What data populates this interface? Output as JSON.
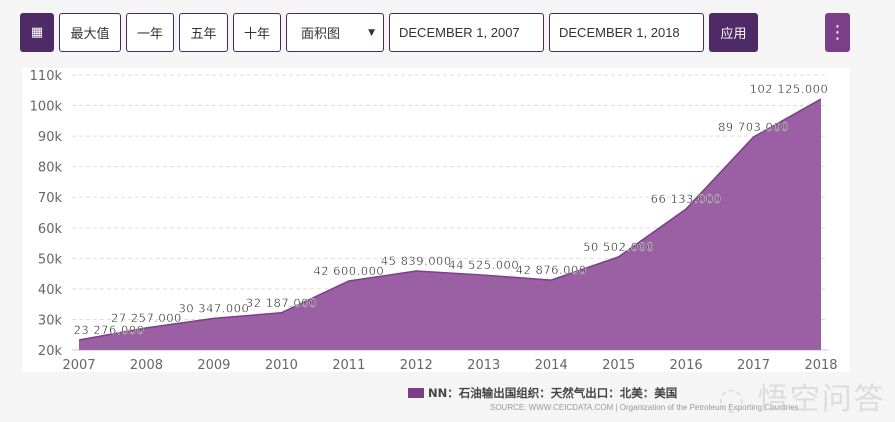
{
  "toolbar": {
    "calendar_icon": "calendar-icon",
    "max": "最大值",
    "one_year": "一年",
    "five_year": "五年",
    "ten_year": "十年",
    "chart_type": "面积图",
    "start_date": "DECEMBER 1, 2007",
    "end_date": "DECEMBER 1, 2018",
    "apply": "应用",
    "more_icon": "kebab-menu-icon"
  },
  "colors": {
    "accent": "#4e2a66",
    "area": "#9b5fa3",
    "line": "#7b3f88",
    "more_button": "#7b3f88"
  },
  "chart_data": {
    "type": "area",
    "x": [
      2007,
      2008,
      2009,
      2010,
      2011,
      2012,
      2013,
      2014,
      2015,
      2016,
      2017,
      2018
    ],
    "values": [
      23276,
      27257,
      30347,
      32187,
      42600,
      45839,
      44525,
      42876,
      50502,
      66133,
      89703,
      102125
    ],
    "data_labels": [
      "23 276.000",
      "27 257.000",
      "30 347.000",
      "32 187.000",
      "42 600.000",
      "45 839.000",
      "44 525.000",
      "42 876.000",
      "50 502.000",
      "66 133.000",
      "89 703.000",
      "102 125.000"
    ],
    "ylim": [
      20000,
      110000
    ],
    "yticks": [
      "20k",
      "30k",
      "40k",
      "50k",
      "60k",
      "70k",
      "80k",
      "90k",
      "100k",
      "110k"
    ],
    "xticks": [
      "2007",
      "2008",
      "2009",
      "2010",
      "2011",
      "2012",
      "2013",
      "2014",
      "2015",
      "2016",
      "2017",
      "2018"
    ],
    "grid": true,
    "legend_placement": "bottom-right",
    "legend": "NN：石油输出国组织：天然气出口：北美：美国",
    "source": "SOURCE: WWW.CEICDATA.COM | Organization of the Petroleum Exporting Countries"
  },
  "watermark": "悟空问答"
}
